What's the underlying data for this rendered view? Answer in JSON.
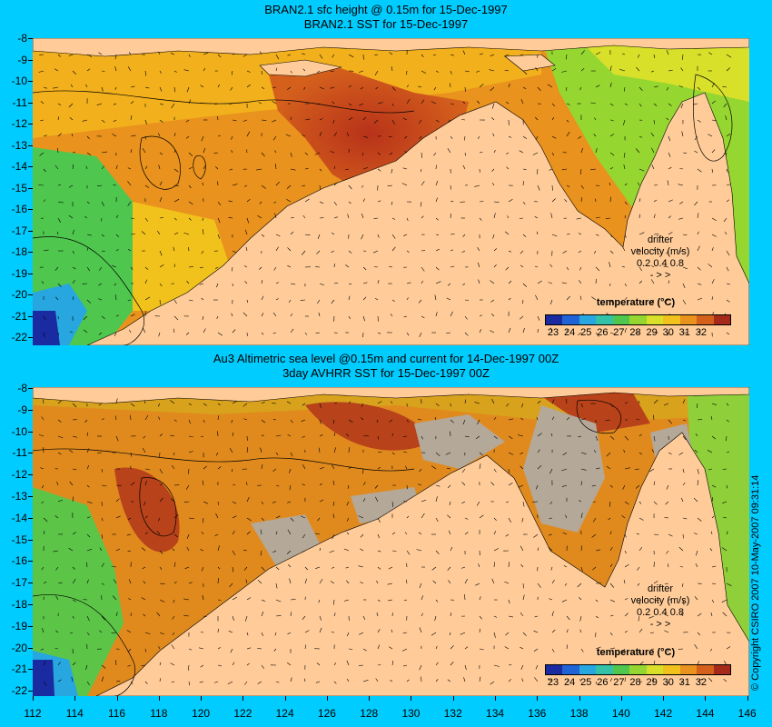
{
  "top_panel": {
    "title_line1": "BRAN2.1 sfc height @ 0.15m for 15-Dec-1997",
    "title_line2": "BRAN2.1 SST for 15-Dec-1997",
    "legend": {
      "title": "temperature (°C)",
      "ticks": [
        "23",
        "24",
        "25",
        "26",
        "27",
        "28",
        "29",
        "30",
        "31",
        "32"
      ]
    },
    "drifter": {
      "line1": "drifter",
      "line2": "velocity (m/s)",
      "scale": "0.2  0.4  0.8",
      "arrows": "-  >  >"
    }
  },
  "bottom_panel": {
    "title_line1": "Au3 Altimetric sea level  @0.15m and current for 14-Dec-1997 00Z",
    "title_line2": "3day AVHRR SST for 15-Dec-1997 00Z",
    "legend": {
      "title": "temperature (°C)",
      "ticks": [
        "23",
        "24",
        "25",
        "26",
        "27",
        "28",
        "29",
        "30",
        "31",
        "32"
      ]
    },
    "drifter": {
      "line1": "drifter",
      "line2": "velocity (m/s)",
      "scale": "0.2  0.4  0.8",
      "arrows": "-  >  >"
    }
  },
  "axes": {
    "latitudes": [
      "-8",
      "-9",
      "-10",
      "-11",
      "-12",
      "-13",
      "-14",
      "-15",
      "-16",
      "-17",
      "-18",
      "-19",
      "-20",
      "-21",
      "-22"
    ],
    "longitudes": [
      "112",
      "114",
      "116",
      "118",
      "120",
      "122",
      "124",
      "126",
      "128",
      "130",
      "132",
      "134",
      "136",
      "138",
      "140",
      "142",
      "144",
      "146"
    ]
  },
  "copyright": "© Copyright CSIRO 2007  10-May-2007 09:31:14",
  "colors": {
    "background": "#00ccff",
    "land": "#ffcc99",
    "cloud": "#b4a898",
    "colorbar": [
      "#1a2aa0",
      "#1f63d6",
      "#27a6df",
      "#33c2a8",
      "#4fc64e",
      "#96d631",
      "#d8e02a",
      "#f2c21c",
      "#e9921d",
      "#d4601c",
      "#a52a1a"
    ]
  }
}
